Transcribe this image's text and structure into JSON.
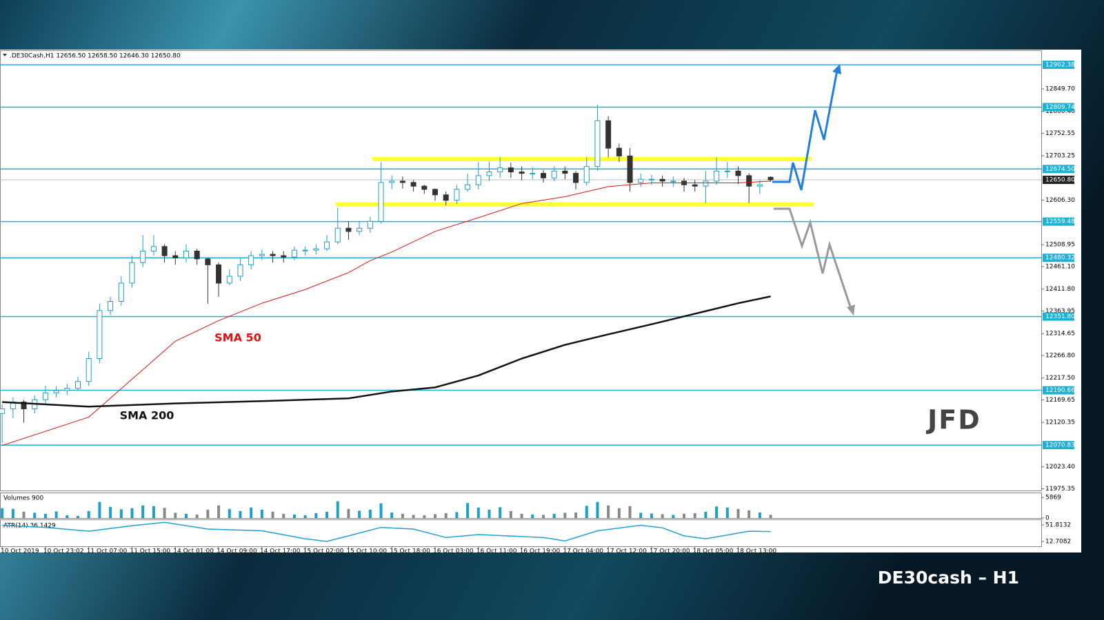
{
  "chart_data": [
    {
      "type": "candlestick",
      "header": ".DE30Cash,H1  12656.50 12658.50 12646.30 12650.80",
      "title": "DE30cash – H1",
      "logo": "JFD",
      "xlim": [
        -0.2,
        96
      ],
      "ylim": [
        11971.6,
        12932.5
      ],
      "xticks": [
        {
          "value": 0,
          "label": "10 Oct 2019"
        },
        {
          "value": 4,
          "label": "10 Oct 23:02"
        },
        {
          "value": 8,
          "label": "11 Oct 07:00"
        },
        {
          "value": 12,
          "label": "11 Oct 15:00"
        },
        {
          "value": 16,
          "label": "14 Oct 01:00"
        },
        {
          "value": 20,
          "label": "14 Oct 09:00"
        },
        {
          "value": 24,
          "label": "14 Oct 17:00"
        },
        {
          "value": 28,
          "label": "15 Oct 02:00"
        },
        {
          "value": 32,
          "label": "15 Oct 10:00"
        },
        {
          "value": 36,
          "label": "15 Oct 18:00"
        },
        {
          "value": 40,
          "label": "16 Oct 03:00"
        },
        {
          "value": 44,
          "label": "16 Oct 11:00"
        },
        {
          "value": 48,
          "label": "16 Oct 19:00"
        },
        {
          "value": 52,
          "label": "17 Oct 04:00"
        },
        {
          "value": 56,
          "label": "17 Oct 12:00"
        },
        {
          "value": 60,
          "label": "17 Oct 20:00"
        },
        {
          "value": 64,
          "label": "18 Oct 05:00"
        },
        {
          "value": 68,
          "label": "18 Oct 13:00"
        }
      ],
      "yticks": [
        {
          "value": 12849.7,
          "label": "12849.70"
        },
        {
          "value": 12800.4,
          "label": "12800.40"
        },
        12752.55,
        12703.25,
        {
          "value": 12606.3,
          "label": "12606.30"
        },
        12508.95,
        {
          "value": 12461.1,
          "label": "12461.10"
        },
        {
          "value": 12411.8,
          "label": "12411.80"
        },
        12363.95,
        12314.65,
        {
          "value": 12266.8,
          "label": "12266.80"
        },
        {
          "value": 12217.5,
          "label": "12217.50"
        },
        12169.65,
        12120.35,
        {
          "value": 12023.4,
          "label": "12023.40"
        },
        11975.35
      ],
      "levels": [
        12902.38,
        12809.74,
        {
          "value": 12674.5,
          "label": "12674.50"
        },
        12559.48,
        12480.32,
        {
          "value": 12351.8,
          "label": "12351.80"
        },
        12190.66,
        12070.83
      ],
      "level_color": "#1fb0d4",
      "last_price": {
        "value": 12650.8,
        "label": "12650.80"
      },
      "range_lines": [
        12696,
        12597
      ],
      "range_color": "#ffff33",
      "up_color": "#1ba0c8",
      "down_color": "#333333",
      "open": [
        12140,
        12150,
        12165,
        12150,
        12170,
        12185,
        12190,
        12195,
        12210,
        12260,
        12365,
        12385,
        12425,
        12470,
        12495,
        12505,
        12485,
        12480,
        12495,
        12478,
        12465,
        12425,
        12440,
        12465,
        12485,
        12488,
        12485,
        12482,
        12497,
        12497,
        12500,
        12515,
        12545,
        12538,
        12545,
        12560,
        12645,
        12648,
        12645,
        12637,
        12630,
        12618,
        12606,
        12630,
        12640,
        12660,
        12668,
        12677,
        12668,
        12665,
        12665,
        12655,
        12670,
        12665,
        12645,
        12680,
        12780,
        12720,
        12703,
        12645,
        12652,
        12652,
        12648,
        12648,
        12640,
        12637,
        12648,
        12670,
        12670,
        12660,
        12637,
        12656.5
      ],
      "high": [
        12160,
        12175,
        12170,
        12180,
        12200,
        12200,
        12205,
        12220,
        12275,
        12380,
        12395,
        12440,
        12485,
        12530,
        12530,
        12510,
        12495,
        12510,
        12500,
        12480,
        12470,
        12455,
        12480,
        12495,
        12498,
        12495,
        12495,
        12505,
        12505,
        12510,
        12530,
        12590,
        12560,
        12560,
        12570,
        12690,
        12660,
        12658,
        12650,
        12640,
        12632,
        12625,
        12640,
        12665,
        12690,
        12690,
        12700,
        12688,
        12680,
        12678,
        12672,
        12680,
        12680,
        12670,
        12700,
        12815,
        12790,
        12730,
        12720,
        12665,
        12662,
        12660,
        12658,
        12655,
        12650,
        12670,
        12700,
        12690,
        12680,
        12665,
        12650,
        12658.5
      ],
      "low": [
        12075,
        12130,
        12120,
        12140,
        12160,
        12175,
        12180,
        12190,
        12200,
        12250,
        12355,
        12375,
        12415,
        12460,
        12485,
        12470,
        12465,
        12470,
        12465,
        12380,
        12395,
        12420,
        12430,
        12455,
        12475,
        12470,
        12470,
        12475,
        12485,
        12488,
        12495,
        12510,
        12520,
        12530,
        12535,
        12555,
        12630,
        12632,
        12625,
        12620,
        12605,
        12595,
        12598,
        12625,
        12630,
        12648,
        12655,
        12655,
        12650,
        12652,
        12645,
        12648,
        12652,
        12630,
        12638,
        12670,
        12700,
        12690,
        12625,
        12635,
        12640,
        12636,
        12635,
        12625,
        12625,
        12600,
        12640,
        12655,
        12642,
        12600,
        12620,
        12646.3
      ],
      "close": [
        12150,
        12165,
        12150,
        12170,
        12185,
        12190,
        12195,
        12210,
        12260,
        12365,
        12385,
        12425,
        12470,
        12495,
        12505,
        12485,
        12480,
        12495,
        12478,
        12465,
        12425,
        12440,
        12465,
        12485,
        12488,
        12485,
        12482,
        12497,
        12497,
        12500,
        12515,
        12545,
        12538,
        12545,
        12560,
        12645,
        12648,
        12645,
        12637,
        12630,
        12618,
        12606,
        12630,
        12640,
        12660,
        12668,
        12677,
        12668,
        12665,
        12665,
        12655,
        12670,
        12665,
        12645,
        12680,
        12780,
        12720,
        12703,
        12645,
        12652,
        12652,
        12648,
        12648,
        12640,
        12637,
        12648,
        12670,
        12670,
        12660,
        12637,
        12640,
        12650.8
      ],
      "series": [
        {
          "name": "SMA 50",
          "color": "#e01010",
          "x": [
            0,
            8,
            12,
            16,
            20,
            24,
            28,
            32,
            34,
            36,
            40,
            44,
            48,
            52,
            56,
            60,
            64,
            68,
            71
          ],
          "values": [
            12070,
            12132,
            12215,
            12298,
            12343,
            12381,
            12411,
            12448,
            12474,
            12493,
            12538,
            12568,
            12599,
            12614,
            12636,
            12644,
            12644,
            12644,
            12648
          ]
        },
        {
          "name": "SMA 200",
          "color": "#111111",
          "x": [
            0,
            8,
            16,
            24,
            32,
            36,
            40,
            44,
            48,
            52,
            56,
            60,
            64,
            68,
            71
          ],
          "values": [
            12165,
            12155,
            12162,
            12167,
            12173,
            12188,
            12197,
            12223,
            12260,
            12290,
            12313,
            12335,
            12358,
            12381,
            12396
          ]
        }
      ]
    },
    {
      "type": "bar",
      "title": "Volumes 900",
      "ylim": [
        0,
        7083
      ],
      "yticks": [
        5869,
        0
      ],
      "values": [
        2800,
        2600,
        1800,
        1500,
        1200,
        1900,
        800,
        600,
        2000,
        4600,
        3200,
        2500,
        2800,
        3600,
        3400,
        2900,
        1500,
        1200,
        1000,
        2400,
        3600,
        2600,
        2000,
        3000,
        2400,
        1800,
        1200,
        1000,
        800,
        1400,
        1800,
        4800,
        2600,
        2100,
        2400,
        4200,
        1600,
        1200,
        900,
        800,
        1100,
        1400,
        1700,
        4300,
        3000,
        2400,
        3100,
        2000,
        1200,
        1000,
        900,
        1200,
        1500,
        1600,
        3500,
        4600,
        3600,
        2800,
        3400,
        1500,
        1300,
        1100,
        900,
        1200,
        1400,
        1800,
        3300,
        3000,
        2600,
        2200,
        1600,
        900
      ]
    },
    {
      "type": "line",
      "title": "ATR(14) 36.1429",
      "color": "#1ba0d8",
      "ylim": [
        1.3,
        61.6
      ],
      "yticks": [
        51.8132,
        12.7082
      ],
      "x": [
        0,
        4,
        8,
        12,
        15,
        19,
        24,
        28,
        30,
        32,
        35,
        38,
        41,
        44,
        50,
        52,
        55,
        59,
        61,
        63,
        65,
        69,
        71
      ],
      "values": [
        51,
        46,
        37,
        50,
        58,
        42,
        38,
        19,
        13,
        26,
        46,
        42,
        22,
        29,
        22,
        14,
        38,
        51,
        45,
        26,
        19,
        37,
        36.14
      ]
    }
  ]
}
